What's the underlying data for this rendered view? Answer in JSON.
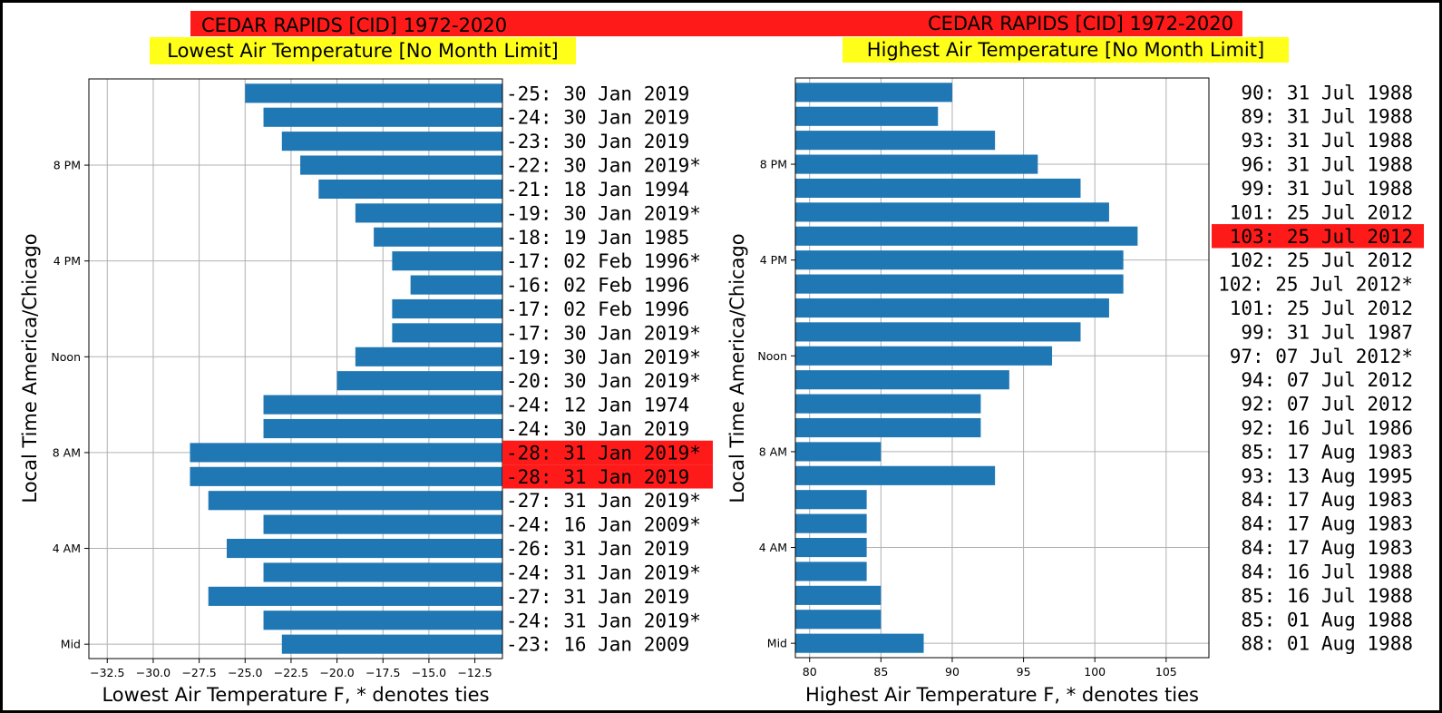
{
  "colors": {
    "bar": "#1f77b4",
    "title_band": "#ff1a1a",
    "subtitle_band": "#ffff1a",
    "highlight": "#ff1a1a"
  },
  "chart_data": [
    {
      "type": "bar",
      "orientation": "horizontal",
      "title": "CEDAR RAPIDS [CID] 1972-2020",
      "subtitle": "Lowest Air Temperature [No Month Limit]",
      "xlabel": "Lowest Air Temperature F, * denotes ties",
      "ylabel": "Local Time America/Chicago",
      "xlim": [
        -33.5,
        -11.0
      ],
      "ylim": [
        -0.6,
        23.6
      ],
      "bars_extend_to": "right edge",
      "xticks": [
        -32.5,
        -30.0,
        -27.5,
        -25.0,
        -22.5,
        -20.0,
        -17.5,
        -15.0,
        -12.5
      ],
      "xtick_labels": [
        "−32.5",
        "−30.0",
        "−27.5",
        "−25.0",
        "−22.5",
        "−20.0",
        "−17.5",
        "−15.0",
        "−12.5"
      ],
      "yticks": [
        0,
        4,
        8,
        12,
        16,
        20
      ],
      "ytick_labels": [
        "Mid",
        "4 AM",
        "8 AM",
        "Noon",
        "4 PM",
        "8 PM"
      ],
      "grid": true,
      "hours": [
        0,
        1,
        2,
        3,
        4,
        5,
        6,
        7,
        8,
        9,
        10,
        11,
        12,
        13,
        14,
        15,
        16,
        17,
        18,
        19,
        20,
        21,
        22,
        23
      ],
      "values": [
        -23,
        -24,
        -27,
        -24,
        -26,
        -24,
        -27,
        -28,
        -28,
        -24,
        -24,
        -20,
        -19,
        -17,
        -17,
        -16,
        -17,
        -18,
        -19,
        -21,
        -22,
        -23,
        -24,
        -25
      ],
      "labels": [
        "-23: 16 Jan 2009",
        "-24: 31 Jan 2019*",
        "-27: 31 Jan 2019",
        "-24: 31 Jan 2019*",
        "-26: 31 Jan 2019",
        "-24: 16 Jan 2009*",
        "-27: 31 Jan 2019*",
        "-28: 31 Jan 2019",
        "-28: 31 Jan 2019*",
        "-24: 30 Jan 2019",
        "-24: 12 Jan 1974",
        "-20: 30 Jan 2019*",
        "-19: 30 Jan 2019*",
        "-17: 30 Jan 2019*",
        "-17: 02 Feb 1996",
        "-16: 02 Feb 1996",
        "-17: 02 Feb 1996*",
        "-18: 19 Jan 1985",
        "-19: 30 Jan 2019*",
        "-21: 18 Jan 1994",
        "-22: 30 Jan 2019*",
        "-23: 30 Jan 2019",
        "-24: 30 Jan 2019",
        "-25: 30 Jan 2019"
      ],
      "highlight_hours": [
        7,
        8
      ]
    },
    {
      "type": "bar",
      "orientation": "horizontal",
      "title": "CEDAR RAPIDS [CID] 1972-2020",
      "subtitle": "Highest Air Temperature [No Month Limit]",
      "xlabel": "Highest Air Temperature F, * denotes ties",
      "ylabel": "Local Time America/Chicago",
      "xlim": [
        79.0,
        108.0
      ],
      "ylim": [
        -0.6,
        23.6
      ],
      "bars_extend_to": "left edge",
      "xticks": [
        80,
        85,
        90,
        95,
        100,
        105
      ],
      "xtick_labels": [
        "80",
        "85",
        "90",
        "95",
        "100",
        "105"
      ],
      "yticks": [
        0,
        4,
        8,
        12,
        16,
        20
      ],
      "ytick_labels": [
        "Mid",
        "4 AM",
        "8 AM",
        "Noon",
        "4 PM",
        "8 PM"
      ],
      "grid": true,
      "hours": [
        0,
        1,
        2,
        3,
        4,
        5,
        6,
        7,
        8,
        9,
        10,
        11,
        12,
        13,
        14,
        15,
        16,
        17,
        18,
        19,
        20,
        21,
        22,
        23
      ],
      "values": [
        88,
        85,
        85,
        84,
        84,
        84,
        84,
        93,
        85,
        92,
        92,
        94,
        97,
        99,
        101,
        102,
        102,
        103,
        101,
        99,
        96,
        93,
        89,
        90
      ],
      "labels": [
        "88: 01 Aug 1988",
        "85: 01 Aug 1988",
        "85: 16 Jul 1988",
        "84: 16 Jul 1988",
        "84: 17 Aug 1983",
        "84: 17 Aug 1983",
        "84: 17 Aug 1983",
        "93: 13 Aug 1995",
        "85: 17 Aug 1983",
        "92: 16 Jul 1986",
        "92: 07 Jul 2012",
        "94: 07 Jul 2012",
        "97: 07 Jul 2012*",
        "99: 31 Jul 1987",
        "101: 25 Jul 2012",
        "102: 25 Jul 2012*",
        "102: 25 Jul 2012",
        "103: 25 Jul 2012",
        "101: 25 Jul 2012",
        "99: 31 Jul 1988",
        "96: 31 Jul 1988",
        "93: 31 Jul 1988",
        "89: 31 Jul 1988",
        "90: 31 Jul 1988"
      ],
      "highlight_hours": [
        17
      ]
    }
  ]
}
